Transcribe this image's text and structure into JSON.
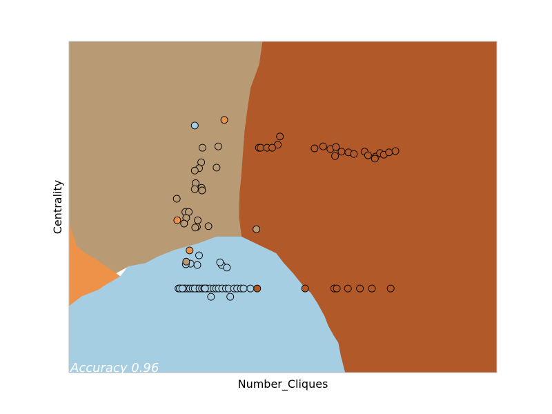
{
  "chart_data": {
    "type": "scatter",
    "title": "",
    "xlabel": "Number_Cliques",
    "ylabel": "Centrality",
    "xlim": [
      0,
      100
    ],
    "ylim": [
      0,
      100
    ],
    "ticks_visible": false,
    "grid": false,
    "legend": "none",
    "annotation": "Accuracy 0.96",
    "class_colors": {
      "class_0": "#a6cee3",
      "class_1": "#ee9249",
      "class_2": "#b89b74",
      "class_3": "#b15928"
    },
    "decision_regions": [
      {
        "class": "class_3",
        "polygon": [
          [
            45.2,
            100
          ],
          [
            100,
            100
          ],
          [
            100,
            0
          ],
          [
            64.5,
            0
          ],
          [
            63.5,
            5
          ],
          [
            62.9,
            9
          ],
          [
            61.9,
            11
          ],
          [
            60.6,
            14
          ],
          [
            59.7,
            17
          ],
          [
            58,
            21
          ],
          [
            56.5,
            24
          ],
          [
            54.8,
            26
          ],
          [
            52.3,
            30
          ],
          [
            50.2,
            33
          ],
          [
            48.4,
            36
          ],
          [
            40.3,
            41
          ],
          [
            39.7,
            47
          ],
          [
            39.8,
            54
          ],
          [
            40.2,
            59
          ],
          [
            40.6,
            66
          ],
          [
            41.0,
            73
          ],
          [
            41.6,
            79
          ],
          [
            42.4,
            86
          ],
          [
            44.4,
            93
          ],
          [
            45.2,
            100
          ]
        ]
      },
      {
        "class": "class_2",
        "polygon": [
          [
            0,
            100
          ],
          [
            45.2,
            100
          ],
          [
            44.4,
            93
          ],
          [
            42.4,
            86
          ],
          [
            41.6,
            79
          ],
          [
            41.0,
            73
          ],
          [
            40.6,
            66
          ],
          [
            40.2,
            59
          ],
          [
            39.8,
            54
          ],
          [
            39.7,
            47
          ],
          [
            40.3,
            41
          ],
          [
            34.5,
            41
          ],
          [
            30.3,
            39
          ],
          [
            24.7,
            37
          ],
          [
            20.8,
            35
          ],
          [
            17.9,
            33
          ],
          [
            13.8,
            32
          ],
          [
            10.9,
            30
          ],
          [
            6.4,
            34
          ],
          [
            3.8,
            36
          ],
          [
            1.8,
            38
          ],
          [
            0,
            45
          ],
          [
            0,
            100
          ]
        ]
      },
      {
        "class": "class_1",
        "polygon": [
          [
            0,
            45
          ],
          [
            1.8,
            38
          ],
          [
            3.8,
            36
          ],
          [
            6.4,
            34
          ],
          [
            10.9,
            30
          ],
          [
            12,
            29
          ],
          [
            10,
            27.5
          ],
          [
            8,
            26
          ],
          [
            7,
            25
          ],
          [
            5,
            24
          ],
          [
            3,
            23
          ],
          [
            2,
            22
          ],
          [
            0,
            20
          ],
          [
            0,
            45
          ]
        ]
      },
      {
        "class": "class_0",
        "polygon": [
          [
            0,
            0
          ],
          [
            64.5,
            0
          ],
          [
            63.5,
            5
          ],
          [
            62.9,
            9
          ],
          [
            61.9,
            11
          ],
          [
            60.6,
            14
          ],
          [
            59.7,
            17
          ],
          [
            58,
            21
          ],
          [
            56.5,
            24
          ],
          [
            54.8,
            26
          ],
          [
            52.3,
            30
          ],
          [
            50.2,
            33
          ],
          [
            48.4,
            36
          ],
          [
            40.3,
            41
          ],
          [
            34.5,
            41
          ],
          [
            30.3,
            39
          ],
          [
            24.7,
            37
          ],
          [
            20.8,
            35
          ],
          [
            17.9,
            33
          ],
          [
            13.8,
            32
          ],
          [
            12,
            29
          ],
          [
            10,
            27.5
          ],
          [
            8,
            26
          ],
          [
            7,
            25
          ],
          [
            5,
            24
          ],
          [
            3,
            23
          ],
          [
            2,
            22
          ],
          [
            0,
            20
          ],
          [
            0,
            0
          ]
        ]
      }
    ],
    "series": [
      {
        "class": "class_0",
        "points": [
          [
            29.4,
            74.6
          ],
          [
            30.4,
            35.4
          ],
          [
            30.0,
            32.5
          ],
          [
            35.7,
            32.5
          ],
          [
            33.2,
            22.9
          ],
          [
            37.7,
            22.9
          ],
          [
            25.6,
            25.4
          ],
          [
            28.4,
            32.9
          ],
          [
            35.3,
            33.3
          ],
          [
            36.9,
            31.7
          ],
          [
            27.3,
            32.7
          ],
          [
            26.9,
            25.4
          ],
          [
            30.0,
            25.4
          ],
          [
            42.4,
            25.4
          ],
          [
            26.1,
            25.4
          ],
          [
            27.2,
            25.4
          ],
          [
            27.8,
            25.4
          ],
          [
            28.3,
            25.4
          ],
          [
            28.9,
            25.4
          ],
          [
            29.4,
            25.4
          ],
          [
            30.5,
            25.4
          ],
          [
            31.1,
            25.4
          ],
          [
            31.6,
            25.4
          ],
          [
            32.2,
            25.4
          ],
          [
            32.9,
            25.4
          ],
          [
            33.8,
            25.4
          ],
          [
            34.4,
            25.4
          ],
          [
            35.0,
            25.4
          ],
          [
            35.8,
            25.4
          ],
          [
            36.7,
            25.4
          ],
          [
            37.3,
            25.4
          ],
          [
            38.6,
            25.4
          ],
          [
            39.3,
            25.4
          ],
          [
            40.2,
            25.4
          ],
          [
            40.8,
            25.4
          ],
          [
            25.9,
            25.4
          ],
          [
            26.5,
            25.4
          ],
          [
            31.8,
            25.4
          ]
        ]
      },
      {
        "class": "class_1",
        "points": [
          [
            36.3,
            76.3
          ],
          [
            25.3,
            46.0
          ],
          [
            28.2,
            36.9
          ]
        ]
      },
      {
        "class": "class_2",
        "points": [
          [
            31.2,
            67.9
          ],
          [
            34.9,
            68.3
          ],
          [
            30.9,
            63.5
          ],
          [
            30.4,
            61.7
          ],
          [
            34.5,
            61.9
          ],
          [
            29.4,
            61.0
          ],
          [
            29.6,
            57.2
          ],
          [
            31.0,
            55.8
          ],
          [
            29.4,
            55.4
          ],
          [
            31.1,
            55.0
          ],
          [
            25.2,
            52.5
          ],
          [
            27.2,
            48.5
          ],
          [
            28.0,
            48.5
          ],
          [
            27.4,
            46.7
          ],
          [
            30.1,
            46.0
          ],
          [
            26.9,
            45.0
          ],
          [
            29.9,
            44.0
          ],
          [
            32.6,
            44.2
          ],
          [
            29.5,
            43.8
          ],
          [
            43.8,
            43.3
          ],
          [
            27.4,
            33.5
          ]
        ]
      },
      {
        "class": "class_3",
        "points": [
          [
            49.3,
            71.3
          ],
          [
            48.8,
            68.8
          ],
          [
            44.4,
            67.9
          ],
          [
            44.8,
            67.9
          ],
          [
            46.3,
            67.9
          ],
          [
            47.5,
            67.9
          ],
          [
            57.4,
            67.7
          ],
          [
            59.4,
            68.3
          ],
          [
            61.1,
            67.5
          ],
          [
            62.4,
            68.1
          ],
          [
            63.7,
            66.7
          ],
          [
            65.3,
            66.5
          ],
          [
            66.6,
            66.0
          ],
          [
            69.1,
            66.7
          ],
          [
            69.9,
            65.6
          ],
          [
            71.7,
            65.2
          ],
          [
            72.7,
            66.3
          ],
          [
            73.6,
            65.8
          ],
          [
            74.8,
            66.5
          ],
          [
            76.3,
            66.9
          ],
          [
            71.5,
            64.6
          ],
          [
            62.2,
            65.4
          ],
          [
            44.0,
            25.4
          ],
          [
            55.2,
            25.4
          ],
          [
            62.0,
            25.4
          ],
          [
            62.6,
            25.4
          ],
          [
            65.2,
            25.4
          ],
          [
            68.0,
            25.4
          ],
          [
            70.8,
            25.4
          ],
          [
            75.2,
            25.4
          ]
        ]
      }
    ]
  }
}
